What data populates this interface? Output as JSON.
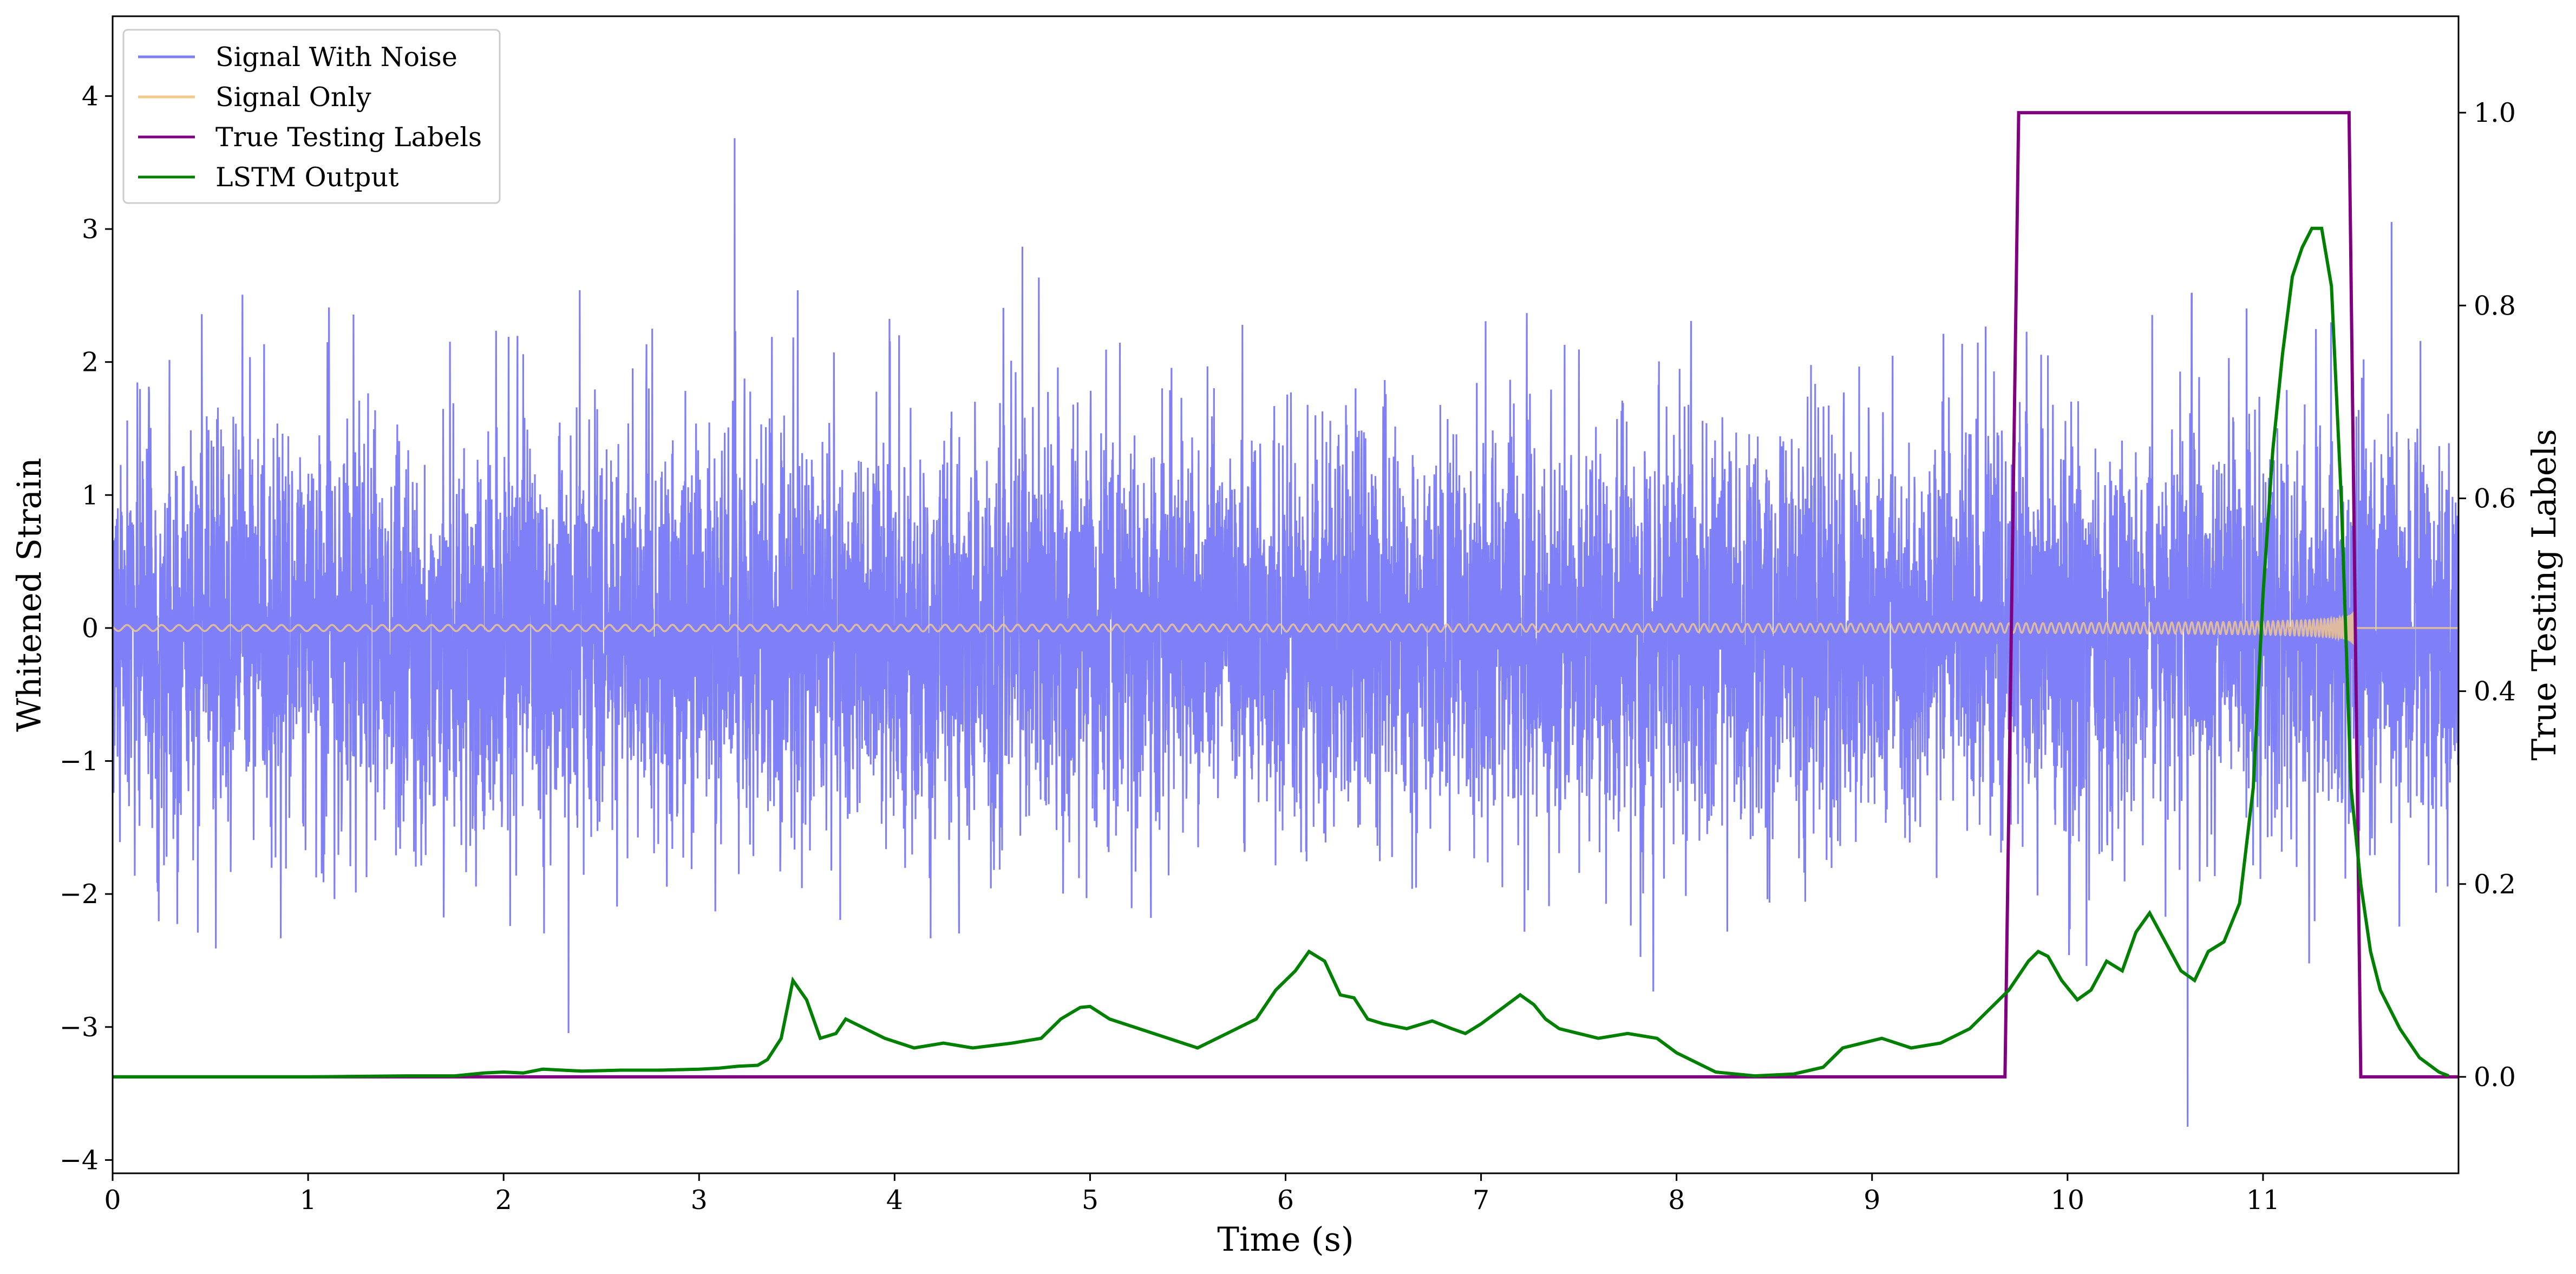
{
  "chart_data": {
    "type": "line",
    "xlabel": "Time (s)",
    "ylabel_left": "Whitened Strain",
    "ylabel_right": "True Testing Labels",
    "xlim": [
      0,
      12
    ],
    "ylim_left": [
      -4.1,
      4.6
    ],
    "ylim_right": [
      -0.1,
      1.1
    ],
    "x_ticks": [
      0,
      1,
      2,
      3,
      4,
      5,
      6,
      7,
      8,
      9,
      10,
      11
    ],
    "y_left_ticks": [
      -4,
      -3,
      -2,
      -1,
      0,
      1,
      2,
      3,
      4
    ],
    "y_right_ticks": [
      0.0,
      0.2,
      0.4,
      0.6,
      0.8,
      1.0
    ],
    "grid": false,
    "legend_position": "top-left",
    "legend": [
      "Signal With Noise",
      "Signal Only",
      "True Testing Labels",
      "LSTM Output"
    ],
    "colors": {
      "noise": "#7f7ff8",
      "signal": "#f5c98a",
      "labels": "#800080",
      "lstm": "#008000"
    },
    "series": [
      {
        "name": "Signal With Noise",
        "axis": "left",
        "description_values": {
          "typical_std": 0.8,
          "peak_max": 4.2,
          "peak_min": -3.7
        }
      },
      {
        "name": "Signal Only",
        "axis": "left",
        "chirp_end_time": 11.47,
        "final_amplitude": 0.9
      },
      {
        "name": "True Testing Labels",
        "axis": "right",
        "x": [
          0,
          9.68,
          9.75,
          11.44,
          11.5,
          12
        ],
        "y": [
          0,
          0,
          1,
          1,
          0,
          0
        ]
      },
      {
        "name": "LSTM Output",
        "axis": "right",
        "x": [
          0,
          1.0,
          1.5,
          1.75,
          1.9,
          2.0,
          2.1,
          2.2,
          2.4,
          2.6,
          2.8,
          3.0,
          3.1,
          3.2,
          3.3,
          3.35,
          3.42,
          3.48,
          3.55,
          3.62,
          3.7,
          3.75,
          3.85,
          3.95,
          4.1,
          4.25,
          4.4,
          4.6,
          4.75,
          4.85,
          4.95,
          5.0,
          5.1,
          5.25,
          5.4,
          5.55,
          5.7,
          5.85,
          5.95,
          6.05,
          6.12,
          6.2,
          6.28,
          6.35,
          6.42,
          6.5,
          6.62,
          6.75,
          6.85,
          6.92,
          7.0,
          7.1,
          7.2,
          7.27,
          7.33,
          7.4,
          7.5,
          7.6,
          7.75,
          7.9,
          8.0,
          8.2,
          8.4,
          8.6,
          8.75,
          8.85,
          8.95,
          9.05,
          9.2,
          9.35,
          9.5,
          9.6,
          9.7,
          9.8,
          9.85,
          9.9,
          9.97,
          10.05,
          10.12,
          10.2,
          10.28,
          10.35,
          10.42,
          10.5,
          10.58,
          10.65,
          10.72,
          10.8,
          10.88,
          10.95,
          11.0,
          11.05,
          11.1,
          11.15,
          11.2,
          11.25,
          11.3,
          11.35,
          11.4,
          11.45,
          11.5,
          11.55,
          11.6,
          11.7,
          11.8,
          11.9,
          11.95
        ],
        "y": [
          0,
          0,
          0.001,
          0.001,
          0.004,
          0.005,
          0.004,
          0.008,
          0.006,
          0.007,
          0.007,
          0.008,
          0.009,
          0.011,
          0.012,
          0.018,
          0.04,
          0.1,
          0.08,
          0.04,
          0.045,
          0.06,
          0.05,
          0.04,
          0.03,
          0.035,
          0.03,
          0.035,
          0.04,
          0.06,
          0.072,
          0.073,
          0.06,
          0.05,
          0.04,
          0.03,
          0.045,
          0.06,
          0.09,
          0.11,
          0.13,
          0.12,
          0.085,
          0.082,
          0.06,
          0.055,
          0.05,
          0.058,
          0.05,
          0.045,
          0.055,
          0.07,
          0.085,
          0.075,
          0.06,
          0.05,
          0.045,
          0.04,
          0.045,
          0.04,
          0.025,
          0.005,
          0.001,
          0.003,
          0.01,
          0.03,
          0.035,
          0.04,
          0.03,
          0.035,
          0.05,
          0.07,
          0.09,
          0.12,
          0.13,
          0.125,
          0.1,
          0.08,
          0.09,
          0.12,
          0.11,
          0.15,
          0.17,
          0.14,
          0.11,
          0.1,
          0.13,
          0.14,
          0.18,
          0.3,
          0.5,
          0.65,
          0.75,
          0.83,
          0.86,
          0.88,
          0.88,
          0.82,
          0.6,
          0.3,
          0.2,
          0.13,
          0.09,
          0.05,
          0.02,
          0.005,
          0.001
        ]
      }
    ]
  }
}
